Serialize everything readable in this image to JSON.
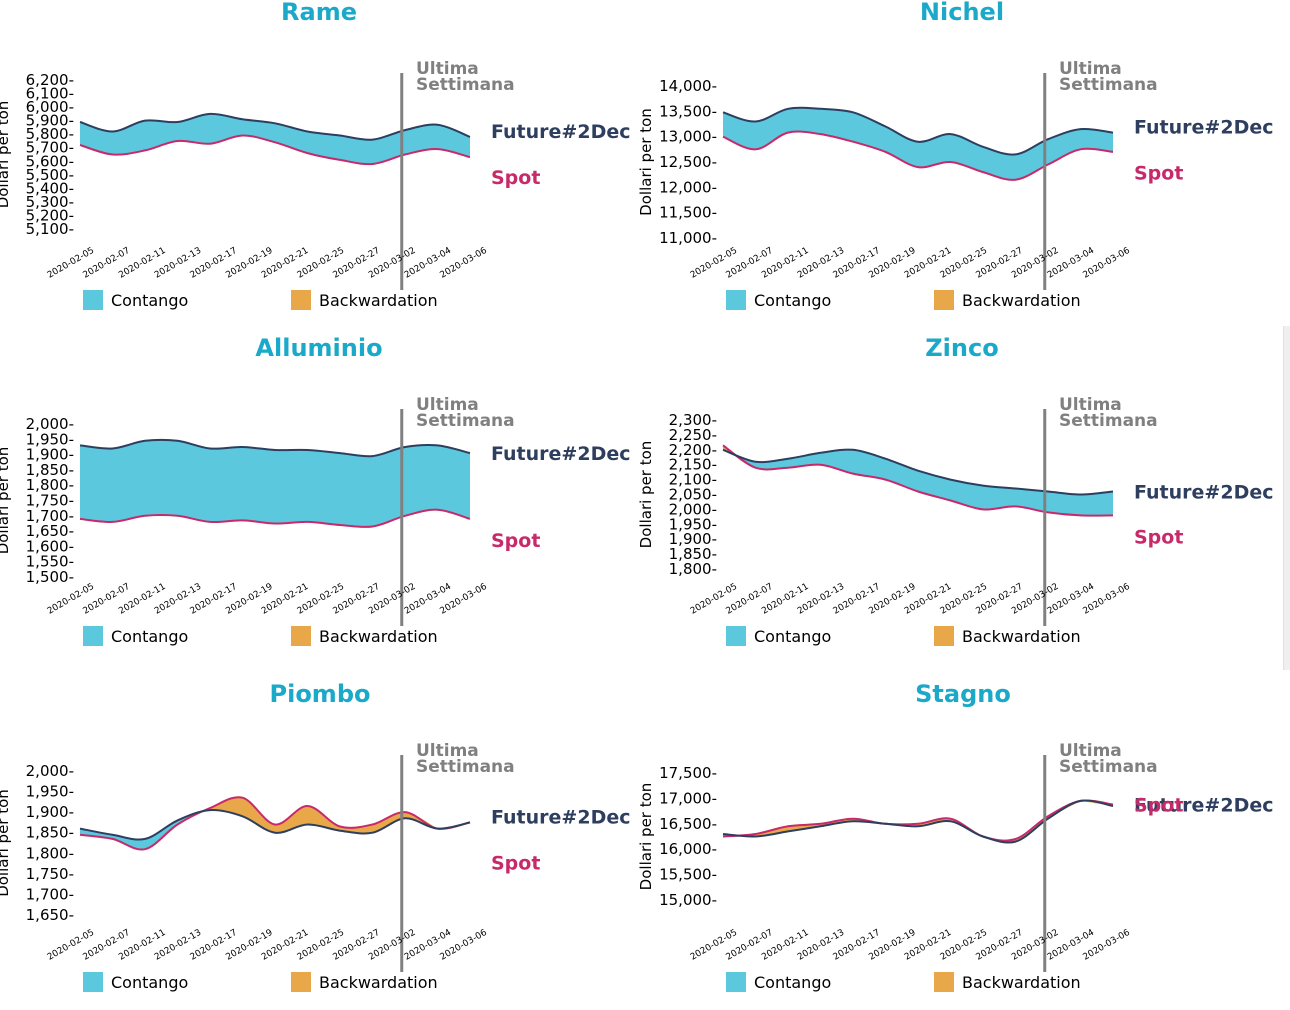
{
  "colors": {
    "title": "#1aa9c8",
    "contango": "#5bc8de",
    "backwardation": "#e8a84a",
    "future_line": "#2d3e5e",
    "spot_line": "#c72a6a",
    "week_marker": "#808080"
  },
  "labels": {
    "ylabel": "Dollari per ton",
    "last_week_1": "Ultima",
    "last_week_2": "Settimana",
    "future": "Future#2Dec",
    "spot": "Spot",
    "contango": "Contango",
    "backwardation": "Backwardation"
  },
  "chart_data": [
    {
      "type": "area",
      "title": "Rame",
      "ylim": [
        5100,
        6200
      ],
      "yticks": [
        5100,
        5200,
        5300,
        5400,
        5500,
        5600,
        5700,
        5800,
        5900,
        6000,
        6100,
        6200
      ],
      "xticks": [
        "2020-02-05",
        "2020-02-07",
        "2020-02-11",
        "2020-02-13",
        "2020-02-17",
        "2020-02-19",
        "2020-02-21",
        "2020-02-25",
        "2020-02-27",
        "2020-03-02",
        "2020-03-04",
        "2020-03-06"
      ],
      "last_week_index": 8.8,
      "series": [
        {
          "name": "Future#2Dec",
          "values": [
            5890,
            5820,
            5900,
            5890,
            5950,
            5910,
            5880,
            5820,
            5790,
            5760,
            5830,
            5870,
            5780
          ]
        },
        {
          "name": "Spot",
          "values": [
            5720,
            5650,
            5680,
            5750,
            5730,
            5790,
            5740,
            5660,
            5610,
            5580,
            5650,
            5690,
            5630
          ]
        }
      ]
    },
    {
      "type": "area",
      "title": "Nichel",
      "ylim": [
        11000,
        14000
      ],
      "yticks": [
        11000,
        11500,
        12000,
        12500,
        13000,
        13500,
        14000
      ],
      "xticks": [
        "2020-02-05",
        "2020-02-07",
        "2020-02-11",
        "2020-02-13",
        "2020-02-17",
        "2020-02-19",
        "2020-02-21",
        "2020-02-25",
        "2020-02-27",
        "2020-03-02",
        "2020-03-04",
        "2020-03-06"
      ],
      "last_week_index": 8.8,
      "series": [
        {
          "name": "Future#2Dec",
          "values": [
            13480,
            13300,
            13550,
            13550,
            13480,
            13200,
            12900,
            13050,
            12800,
            12650,
            12950,
            13150,
            13080
          ]
        },
        {
          "name": "Spot",
          "values": [
            13000,
            12750,
            13080,
            13050,
            12900,
            12700,
            12400,
            12500,
            12300,
            12150,
            12450,
            12750,
            12700
          ]
        }
      ]
    },
    {
      "type": "area",
      "title": "Alluminio",
      "ylim": [
        1500,
        2000
      ],
      "yticks": [
        1500,
        1550,
        1600,
        1650,
        1700,
        1750,
        1800,
        1850,
        1900,
        1950,
        2000
      ],
      "xticks": [
        "2020-02-05",
        "2020-02-07",
        "2020-02-11",
        "2020-02-13",
        "2020-02-17",
        "2020-02-19",
        "2020-02-21",
        "2020-02-25",
        "2020-02-27",
        "2020-03-02",
        "2020-03-04",
        "2020-03-06"
      ],
      "last_week_index": 8.8,
      "series": [
        {
          "name": "Future#2Dec",
          "values": [
            1930,
            1920,
            1945,
            1945,
            1920,
            1925,
            1915,
            1915,
            1905,
            1895,
            1925,
            1930,
            1905
          ]
        },
        {
          "name": "Spot",
          "values": [
            1690,
            1680,
            1700,
            1700,
            1680,
            1685,
            1675,
            1680,
            1670,
            1665,
            1700,
            1720,
            1690
          ]
        }
      ]
    },
    {
      "type": "area",
      "title": "Zinco",
      "ylim": [
        1800,
        2300
      ],
      "yticks": [
        1800,
        1850,
        1900,
        1950,
        2000,
        2050,
        2100,
        2150,
        2200,
        2250,
        2300
      ],
      "xticks": [
        "2020-02-05",
        "2020-02-07",
        "2020-02-11",
        "2020-02-13",
        "2020-02-17",
        "2020-02-19",
        "2020-02-21",
        "2020-02-25",
        "2020-02-27",
        "2020-03-02",
        "2020-03-04",
        "2020-03-06"
      ],
      "last_week_index": 8.8,
      "series": [
        {
          "name": "Future#2Dec",
          "values": [
            2200,
            2160,
            2170,
            2190,
            2200,
            2170,
            2130,
            2100,
            2080,
            2070,
            2060,
            2050,
            2060
          ]
        },
        {
          "name": "Spot",
          "values": [
            2215,
            2140,
            2140,
            2150,
            2120,
            2100,
            2060,
            2030,
            2000,
            2010,
            1990,
            1980,
            1980
          ]
        }
      ]
    },
    {
      "type": "area",
      "title": "Piombo",
      "ylim": [
        1650,
        2000
      ],
      "yticks": [
        1650,
        1700,
        1750,
        1800,
        1850,
        1900,
        1950,
        2000
      ],
      "xticks": [
        "2020-02-05",
        "2020-02-07",
        "2020-02-11",
        "2020-02-13",
        "2020-02-17",
        "2020-02-19",
        "2020-02-21",
        "2020-02-25",
        "2020-02-27",
        "2020-03-02",
        "2020-03-04",
        "2020-03-06"
      ],
      "last_week_index": 8.8,
      "series": [
        {
          "name": "Future#2Dec",
          "values": [
            1860,
            1845,
            1835,
            1880,
            1905,
            1890,
            1850,
            1870,
            1855,
            1850,
            1885,
            1860,
            1875
          ]
        },
        {
          "name": "Spot",
          "values": [
            1845,
            1835,
            1810,
            1870,
            1910,
            1935,
            1870,
            1915,
            1865,
            1870,
            1900,
            1860,
            1875
          ]
        }
      ]
    },
    {
      "type": "area",
      "title": "Stagno",
      "ylim": [
        15000,
        17500
      ],
      "yticks": [
        15000,
        15500,
        16000,
        16500,
        17000,
        17500
      ],
      "xticks": [
        "2020-02-05",
        "2020-02-07",
        "2020-02-11",
        "2020-02-13",
        "2020-02-17",
        "2020-02-19",
        "2020-02-21",
        "2020-02-25",
        "2020-02-27",
        "2020-03-02",
        "2020-03-04",
        "2020-03-06"
      ],
      "last_week_index": 8.8,
      "series": [
        {
          "name": "Future#2Dec",
          "values": [
            16300,
            16250,
            16350,
            16450,
            16550,
            16500,
            16450,
            16550,
            16250,
            16150,
            16600,
            16950,
            16850
          ]
        },
        {
          "name": "Spot",
          "values": [
            16250,
            16300,
            16450,
            16500,
            16600,
            16500,
            16500,
            16600,
            16250,
            16200,
            16650,
            16950,
            16880
          ]
        }
      ]
    }
  ]
}
